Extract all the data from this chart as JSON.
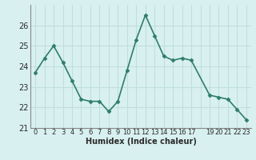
{
  "x": [
    0,
    1,
    2,
    3,
    4,
    5,
    6,
    7,
    8,
    9,
    10,
    11,
    12,
    13,
    14,
    15,
    16,
    17,
    19,
    20,
    21,
    22,
    23
  ],
  "y": [
    23.7,
    24.4,
    25.0,
    24.2,
    23.3,
    22.4,
    22.3,
    22.3,
    21.8,
    22.3,
    23.8,
    25.3,
    26.5,
    25.5,
    24.5,
    24.3,
    24.4,
    24.3,
    22.6,
    22.5,
    22.4,
    21.9,
    21.4
  ],
  "line_color": "#2e7d6e",
  "marker": "D",
  "marker_size": 2.5,
  "bg_color": "#d9f0f0",
  "grid_color": "#c0dede",
  "xlabel": "Humidex (Indice chaleur)",
  "ylim": [
    21,
    27
  ],
  "yticks": [
    21,
    22,
    23,
    24,
    25,
    26
  ],
  "xtick_labels": [
    "0",
    "1",
    "2",
    "3",
    "4",
    "5",
    "6",
    "7",
    "8",
    "9",
    "10",
    "11",
    "12",
    "13",
    "14",
    "15",
    "16",
    "17",
    "",
    "19",
    "20",
    "21",
    "22",
    "23"
  ],
  "linewidth": 1.2
}
